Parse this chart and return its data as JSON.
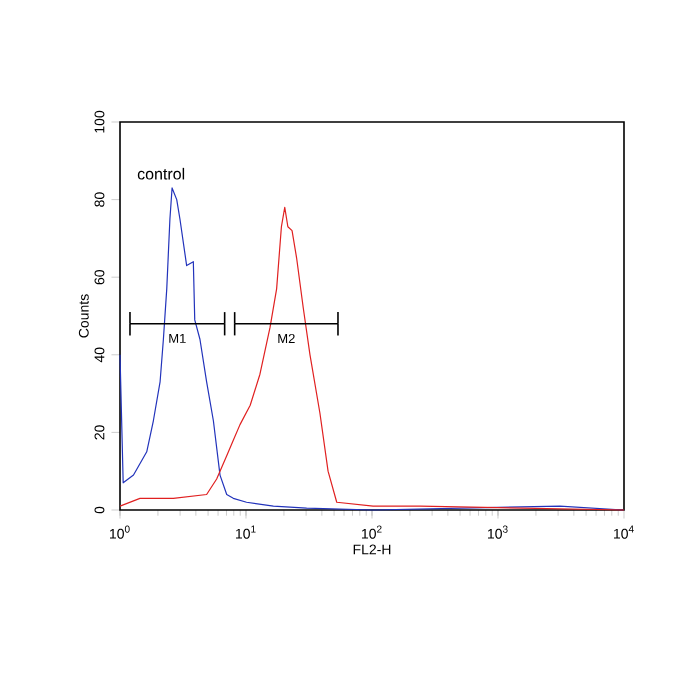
{
  "chart_data": {
    "type": "line",
    "xlabel": "FL2-H",
    "ylabel": "Counts",
    "log": "x",
    "xlim": [
      1,
      10000
    ],
    "ylim": [
      0,
      100
    ],
    "xticks": [
      {
        "value": 1,
        "label": "10$^{0}$"
      },
      {
        "value": 10,
        "label": "10$^{1}$"
      },
      {
        "value": 100,
        "label": "10$^{2}$"
      },
      {
        "value": 1000,
        "label": "10$^{3}$"
      },
      {
        "value": 10000,
        "label": "10$^{4}$"
      }
    ],
    "yticks": [
      0,
      20,
      40,
      60,
      80,
      100
    ],
    "grid": false,
    "marker": "none",
    "line_style": "solid",
    "annotations": [
      "control",
      "M1",
      "M2"
    ],
    "series": [
      {
        "color": "#2233bb",
        "x": [
          1.0,
          1.06,
          1.28,
          1.63,
          1.84,
          2.08,
          2.21,
          2.35,
          2.49,
          2.59,
          2.82,
          2.99,
          3.38,
          3.82,
          3.92,
          4.31,
          4.87,
          5.51,
          6.22,
          7.03,
          7.93,
          10.1,
          16.5,
          30.3,
          102,
          3100,
          9900
        ],
        "values": [
          40,
          7,
          9,
          15,
          23,
          33,
          44,
          57,
          75,
          83,
          80,
          75,
          63,
          64,
          49,
          44,
          33,
          23,
          9,
          4,
          3,
          2,
          1,
          0.5,
          0,
          1,
          0
        ]
      },
      {
        "color": "#e02020",
        "x": [
          1.0,
          1.44,
          2.65,
          4.87,
          5.85,
          7.03,
          7.93,
          8.96,
          10.8,
          12.9,
          15.5,
          17.5,
          19.1,
          20.3,
          21.5,
          23.2,
          25.2,
          28.5,
          32.2,
          38.6,
          44.8,
          52.5,
          102,
          240,
          10000
        ],
        "values": [
          1,
          3,
          3,
          4,
          8,
          14,
          18,
          22,
          27,
          35,
          47,
          57,
          73,
          78,
          73,
          72,
          65,
          52,
          40,
          25,
          10,
          2,
          1,
          1,
          0
        ]
      },
      {
        "color": "#000000",
        "x": [
          1.2,
          6.77
        ],
        "values": [
          48,
          48
        ],
        "errors": [
          3,
          3
        ]
      },
      {
        "color": "#000000",
        "x": [
          8.13,
          53.7
        ],
        "values": [
          48,
          48
        ],
        "errors": [
          3,
          3
        ]
      }
    ]
  }
}
